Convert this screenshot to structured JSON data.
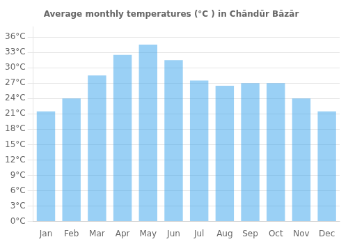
{
  "chart_data": {
    "type": "bar",
    "title": "Average monthly temperatures (°C ) in Chāndūr Bāzār",
    "categories": [
      "Jan",
      "Feb",
      "Mar",
      "Apr",
      "May",
      "Jun",
      "Jul",
      "Aug",
      "Sep",
      "Oct",
      "Nov",
      "Dec"
    ],
    "values": [
      21.5,
      24.0,
      28.5,
      32.5,
      34.5,
      31.5,
      27.5,
      26.5,
      27.0,
      27.0,
      24.0,
      21.5
    ],
    "ylim": [
      0,
      38
    ],
    "yticks": [
      {
        "value": 0,
        "label": "0°C"
      },
      {
        "value": 3,
        "label": "3°C"
      },
      {
        "value": 6,
        "label": "6°C"
      },
      {
        "value": 9,
        "label": "9°C"
      },
      {
        "value": 12,
        "label": "12°C"
      },
      {
        "value": 15,
        "label": "15°C"
      },
      {
        "value": 18,
        "label": "18°C"
      },
      {
        "value": 21,
        "label": "21°C"
      },
      {
        "value": 24,
        "label": "24°C"
      },
      {
        "value": 27,
        "label": "27°C"
      },
      {
        "value": 30,
        "label": "30°C"
      },
      {
        "value": 33,
        "label": "33°C"
      },
      {
        "value": 36,
        "label": "36°C"
      }
    ],
    "grid": true
  }
}
